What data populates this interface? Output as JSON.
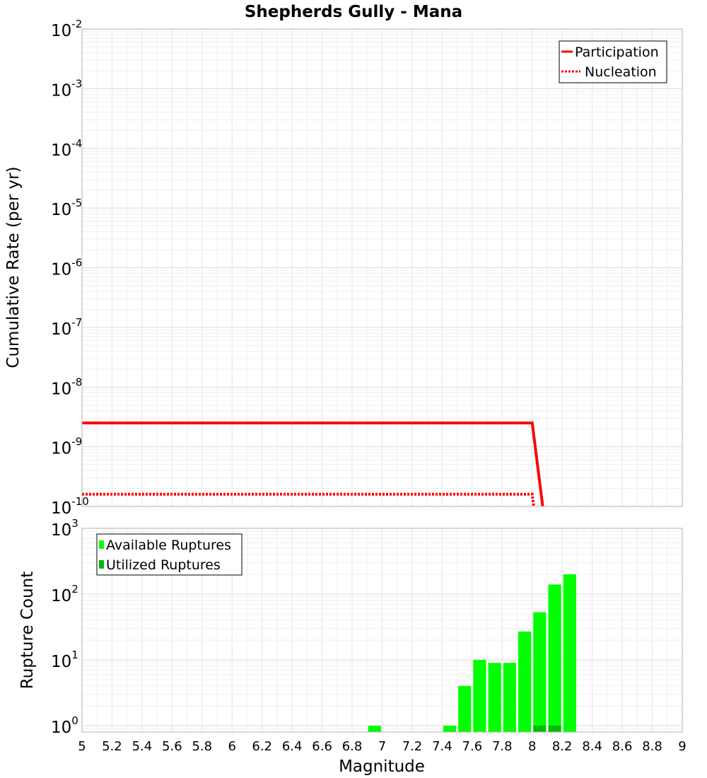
{
  "chart_data": [
    {
      "type": "line",
      "title": "Shepherds Gully - Mana",
      "xlabel": "",
      "ylabel": "Cumulative Rate (per yr)",
      "xlim": [
        5,
        9
      ],
      "ylim": [
        1e-10,
        0.01
      ],
      "yscale": "log",
      "grid": true,
      "legend_position": "top-right",
      "y_tick_exponents": [
        -10,
        -9,
        -8,
        -7,
        -6,
        -5,
        -4,
        -3,
        -2
      ],
      "series": [
        {
          "name": "Participation",
          "color": "#ff0000",
          "style": "solid",
          "points": [
            [
              5.0,
              2.5e-09
            ],
            [
              8.0,
              2.5e-09
            ],
            [
              8.07,
              1e-10
            ]
          ]
        },
        {
          "name": "Nucleation",
          "color": "#ff0000",
          "style": "dotted",
          "points": [
            [
              5.0,
              1.6e-10
            ],
            [
              8.0,
              1.6e-10
            ],
            [
              8.01,
              1e-10
            ]
          ]
        }
      ]
    },
    {
      "type": "bar",
      "title": "",
      "xlabel": "Magnitude",
      "ylabel": "Rupture Count",
      "xlim": [
        5,
        9
      ],
      "ylim": [
        0.8,
        1000
      ],
      "yscale": "log",
      "grid": true,
      "legend_position": "top-left",
      "bar_width": 0.1,
      "x_ticks": [
        "5",
        "5.2",
        "5.4",
        "5.6",
        "5.8",
        "6",
        "6.2",
        "6.4",
        "6.6",
        "6.8",
        "7",
        "7.2",
        "7.4",
        "7.6",
        "7.8",
        "8",
        "8.2",
        "8.4",
        "8.6",
        "8.8",
        "9"
      ],
      "y_tick_exponents": [
        0,
        1,
        2,
        3
      ],
      "series": [
        {
          "name": "Available Ruptures",
          "color": "#00ff00",
          "bars": [
            [
              6.95,
              1
            ],
            [
              7.45,
              1
            ],
            [
              7.55,
              4
            ],
            [
              7.65,
              10
            ],
            [
              7.75,
              9
            ],
            [
              7.85,
              9
            ],
            [
              7.95,
              27
            ],
            [
              8.05,
              53
            ],
            [
              8.15,
              140
            ],
            [
              8.25,
              200
            ]
          ]
        },
        {
          "name": "Utilized Ruptures",
          "color": "#00bb00",
          "bars": [
            [
              8.05,
              1
            ],
            [
              8.15,
              1
            ]
          ]
        }
      ]
    }
  ]
}
